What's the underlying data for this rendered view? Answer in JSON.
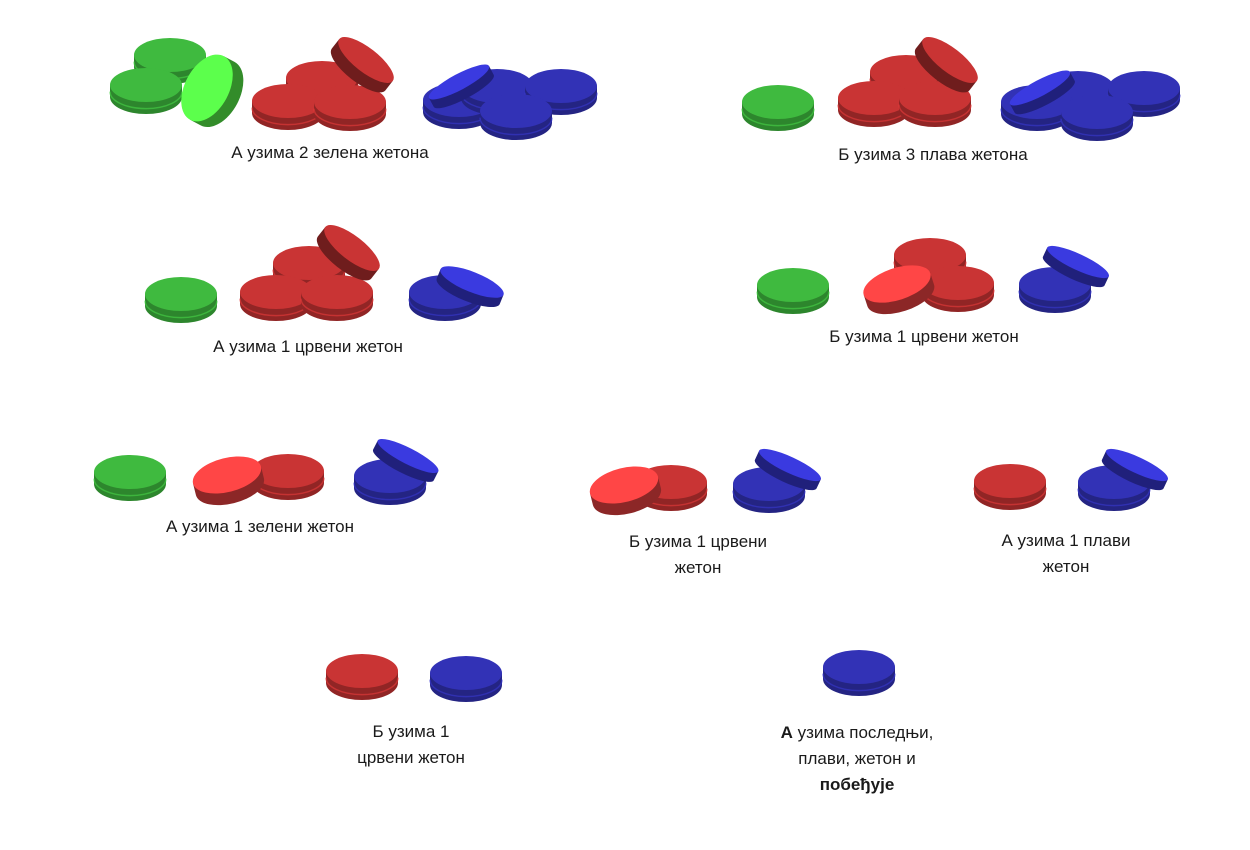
{
  "colors": {
    "green": "#3fba3f",
    "green_light": "#5cff4c",
    "red": "#c93434",
    "red_light": "#ff4646",
    "blue": "#3232b6",
    "blue_light": "#3a3ae0"
  },
  "steps": [
    {
      "caption_lines": [
        "А узима 2 зелена жетона"
      ]
    },
    {
      "caption_lines": [
        "Б узима 3 плава жетона"
      ]
    },
    {
      "caption_lines": [
        "А узима 1 црвени жетон"
      ]
    },
    {
      "caption_lines": [
        "Б узима 1 црвени жетон"
      ]
    },
    {
      "caption_lines": [
        "А узима 1 зелени жетон"
      ]
    },
    {
      "caption_lines": [
        "Б узима 1 црвени",
        "жетон"
      ]
    },
    {
      "caption_lines": [
        "А узима 1 плави",
        "жетон"
      ]
    },
    {
      "caption_lines": [
        "Б узима 1",
        "црвени жетон"
      ]
    },
    {
      "final": {
        "bold_player": "А",
        "line1_rest": " узима последњи,",
        "line2": "плави, жетон и",
        "bold_end": "побеђује"
      }
    }
  ]
}
